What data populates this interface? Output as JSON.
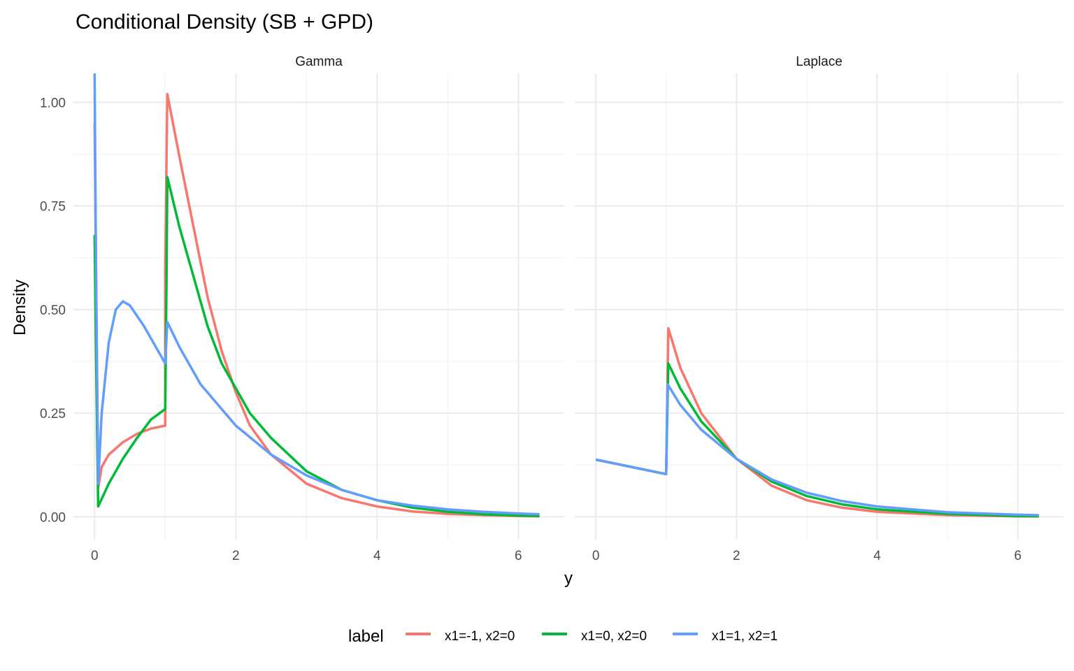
{
  "chart_data": {
    "type": "line",
    "title": "Conditional Density (SB + GPD)",
    "xlabel": "y",
    "ylabel": "Density",
    "xlim": [
      -0.3,
      6.65
    ],
    "ylim": [
      -0.055,
      1.07
    ],
    "x_ticks": [
      0,
      2,
      4,
      6
    ],
    "x_tick_labels": [
      "0",
      "2",
      "4",
      "6"
    ],
    "y_ticks": [
      0,
      0.25,
      0.5,
      0.75,
      1.0
    ],
    "y_tick_labels": [
      "0.00",
      "0.25",
      "0.50",
      "0.75",
      "1.00"
    ],
    "grid": true,
    "legend": {
      "title": "label",
      "position": "bottom"
    },
    "series_colors": {
      "x1=-1, x2=0": "#F8766D",
      "x1=0, x2=0": "#00BA38",
      "x1=1, x2=1": "#619CFF"
    },
    "panels": [
      {
        "name": "Gamma",
        "series": [
          {
            "name": "x1=-1, x2=0",
            "x": [
              0,
              0.05,
              0.1,
              0.2,
              0.4,
              0.6,
              0.8,
              1.0,
              1.0,
              1.03,
              1.2,
              1.4,
              1.6,
              1.8,
              2.0,
              2.2,
              2.5,
              3.0,
              3.5,
              4.0,
              4.5,
              5.0,
              5.5,
              6.0,
              6.3
            ],
            "y": [
              0.95,
              0.07,
              0.12,
              0.15,
              0.18,
              0.2,
              0.213,
              0.22,
              0.6,
              1.02,
              0.87,
              0.7,
              0.53,
              0.4,
              0.3,
              0.22,
              0.15,
              0.08,
              0.045,
              0.025,
              0.013,
              0.007,
              0.004,
              0.002,
              0.001
            ]
          },
          {
            "name": "x1=0, x2=0",
            "x": [
              0,
              0.02,
              0.05,
              0.2,
              0.4,
              0.6,
              0.8,
              1.0,
              1.02,
              1.03,
              1.2,
              1.4,
              1.6,
              1.8,
              2.0,
              2.2,
              2.5,
              3.0,
              3.5,
              4.0,
              4.5,
              5.0,
              5.5,
              6.0,
              6.3
            ],
            "y": [
              0.68,
              0.4,
              0.025,
              0.08,
              0.14,
              0.19,
              0.235,
              0.26,
              0.6,
              0.82,
              0.7,
              0.58,
              0.46,
              0.37,
              0.31,
              0.25,
              0.19,
              0.11,
              0.065,
              0.04,
              0.022,
              0.012,
              0.006,
              0.003,
              0.002
            ]
          },
          {
            "name": "x1=1, x2=1",
            "x": [
              0,
              0.02,
              0.05,
              0.1,
              0.2,
              0.3,
              0.4,
              0.5,
              0.7,
              0.9,
              1.0,
              1.03,
              1.2,
              1.5,
              2.0,
              2.5,
              3.0,
              3.5,
              4.0,
              4.5,
              5.0,
              5.5,
              6.0,
              6.3
            ],
            "y": [
              1.07,
              0.6,
              0.08,
              0.25,
              0.42,
              0.5,
              0.52,
              0.51,
              0.46,
              0.4,
              0.37,
              0.47,
              0.41,
              0.32,
              0.22,
              0.15,
              0.1,
              0.065,
              0.04,
              0.027,
              0.018,
              0.012,
              0.008,
              0.006
            ]
          }
        ]
      },
      {
        "name": "Laplace",
        "series": [
          {
            "name": "x1=-1, x2=0",
            "x": [
              0,
              1.0,
              1.03,
              1.2,
              1.5,
              2.0,
              2.5,
              3.0,
              3.5,
              4.0,
              5.0,
              6.0,
              6.3
            ],
            "y": [
              0.138,
              0.103,
              0.455,
              0.36,
              0.25,
              0.14,
              0.075,
              0.04,
              0.022,
              0.012,
              0.004,
              0.001,
              0.001
            ]
          },
          {
            "name": "x1=0, x2=0",
            "x": [
              0,
              1.0,
              1.03,
              1.2,
              1.5,
              2.0,
              2.5,
              3.0,
              3.5,
              4.0,
              5.0,
              6.0,
              6.3
            ],
            "y": [
              0.138,
              0.103,
              0.37,
              0.31,
              0.23,
              0.14,
              0.085,
              0.05,
              0.03,
              0.018,
              0.007,
              0.002,
              0.001
            ]
          },
          {
            "name": "x1=1, x2=1",
            "x": [
              0,
              1.0,
              1.02,
              1.2,
              1.5,
              2.0,
              2.5,
              3.0,
              3.5,
              4.0,
              5.0,
              6.0,
              6.3
            ],
            "y": [
              0.138,
              0.103,
              0.32,
              0.27,
              0.21,
              0.14,
              0.09,
              0.058,
              0.038,
              0.025,
              0.011,
              0.005,
              0.004
            ]
          }
        ]
      }
    ]
  }
}
